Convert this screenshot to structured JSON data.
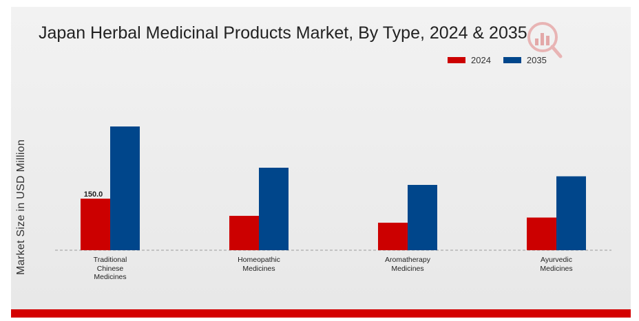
{
  "chart_data": {
    "type": "bar",
    "title": "Japan Herbal Medicinal Products Market, By Type, 2024 & 2035",
    "xlabel": "",
    "ylabel": "Market Size in USD Million",
    "categories": [
      "Traditional\nChinese\nMedicines",
      "Homeopathic\nMedicines",
      "Aromatherapy\nMedicines",
      "Ayurvedic\nMedicines"
    ],
    "series": [
      {
        "name": "2024",
        "color": "#cc0000",
        "values": [
          150.0,
          100.0,
          80.0,
          95.0
        ]
      },
      {
        "name": "2035",
        "color": "#00468b",
        "values": [
          360.0,
          240.0,
          190.0,
          215.0
        ]
      }
    ],
    "data_labels": [
      {
        "series": 0,
        "index": 0,
        "text": "150.0"
      }
    ],
    "ylim": [
      0,
      400
    ],
    "grid": false,
    "legend_position": "top-right"
  }
}
